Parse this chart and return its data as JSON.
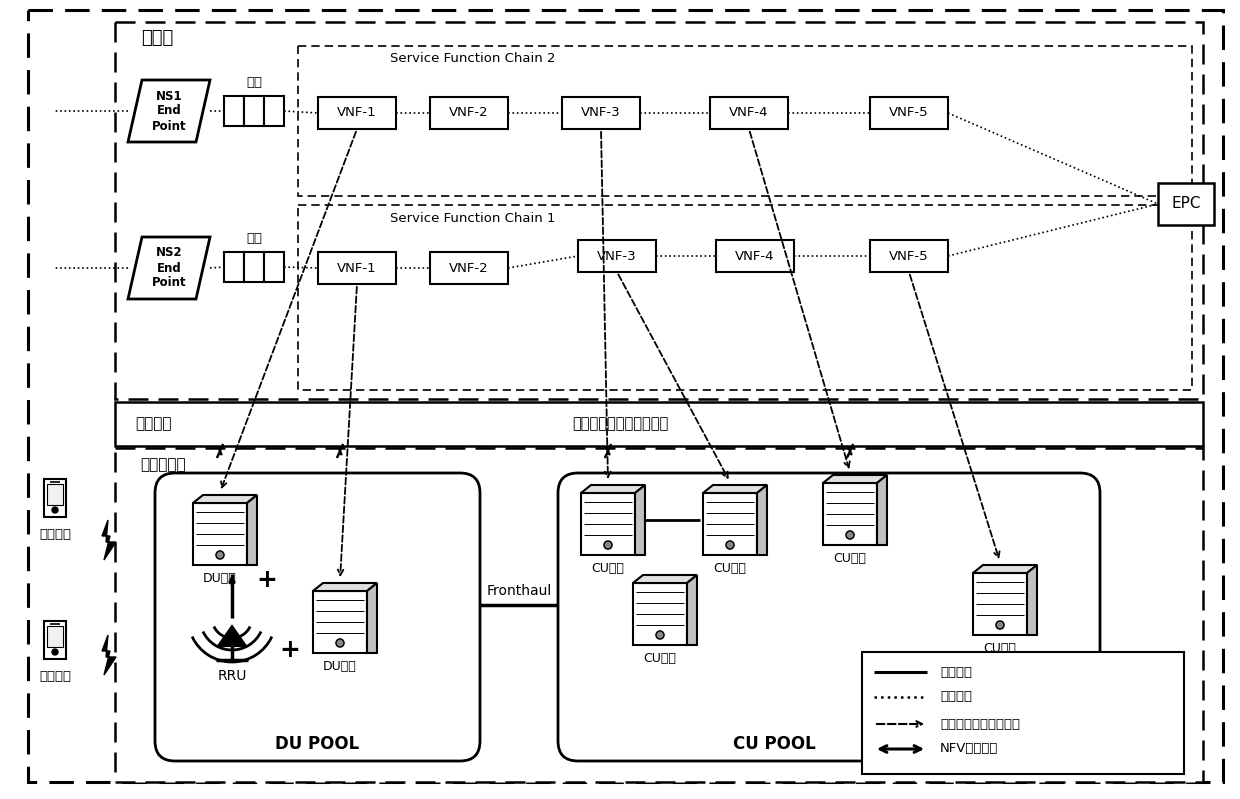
{
  "bg_color": "#ffffff",
  "app_layer_label": "应用层",
  "virt_layer_label": "虚拟化层",
  "infra_layer_label": "基础设施层",
  "resource_mgmt_label": "资源管理、节点状态监测",
  "sfc2_label": "Service Function Chain 2",
  "sfc1_label": "Service Function Chain 1",
  "ns1_label": "NS1\nEnd\nPoint",
  "ns2_label": "NS2\nEnd\nPoint",
  "queue_label": "队列",
  "epc_label": "EPC",
  "fronthaul_label": "Fronthaul",
  "du_pool_label": "DU POOL",
  "cu_pool_label": "CU POOL",
  "rru_label": "RRU",
  "du_device_label": "DU设备",
  "cu_device_label": "CU设备",
  "user_terminal_label": "用户终端",
  "vnf_sfc2": [
    "VNF-1",
    "VNF-2",
    "VNF-3",
    "VNF-4",
    "VNF-5"
  ],
  "vnf_sfc1": [
    "VNF-1",
    "VNF-2",
    "VNF-3",
    "VNF-4",
    "VNF-5"
  ],
  "legend_labels": [
    "物理链路",
    "逻辑链路",
    "虚拟网络功能映射关系",
    "NFV控制指令"
  ]
}
